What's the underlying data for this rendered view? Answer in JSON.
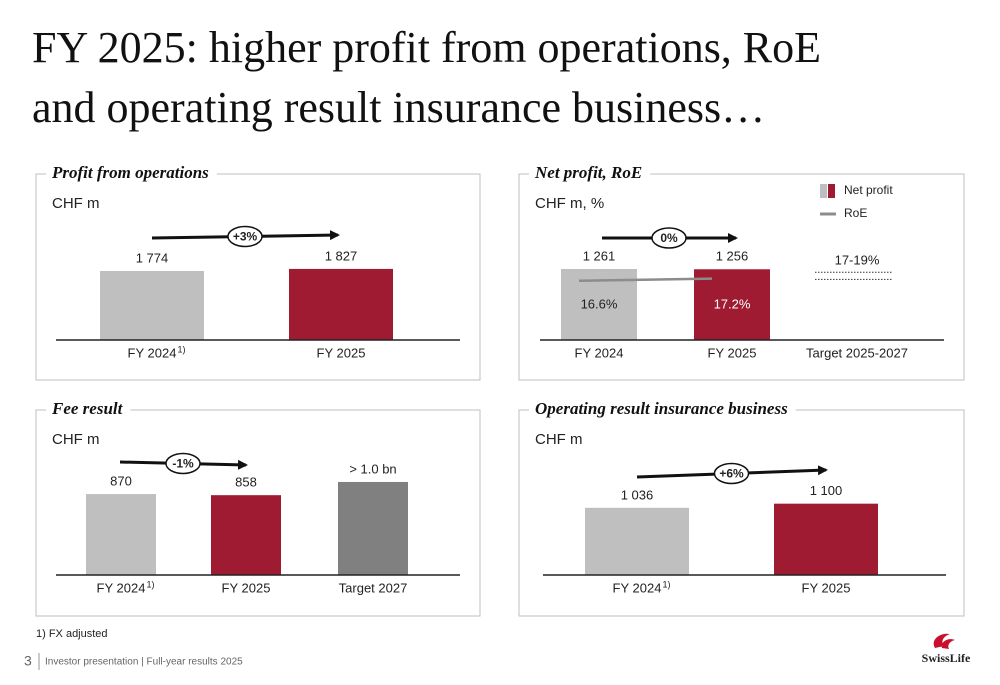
{
  "title": [
    "FY 2025: higher profit from operations, RoE",
    "and operating result insurance business…"
  ],
  "chart_data": [
    {
      "type": "bar",
      "title": "Profit from operations",
      "subtitle": "CHF m",
      "categories": [
        "FY 2024",
        "FY 2025"
      ],
      "category_notes": [
        "1)",
        null
      ],
      "values": [
        1774,
        1827
      ],
      "value_labels": [
        "1 774",
        "1 827"
      ],
      "colors": [
        "#bfbfbf",
        "#9e1b32"
      ],
      "ylim": [
        0,
        2750
      ],
      "change": "+3%"
    },
    {
      "type": "bar_line",
      "title": "Net profit, RoE",
      "subtitle": "CHF m, %",
      "categories": [
        "FY 2024",
        "FY 2025",
        "Target 2025-2027"
      ],
      "series": [
        {
          "name": "Net profit",
          "type": "bar",
          "colors": [
            "#bfbfbf",
            "#9e1b32",
            null
          ],
          "values": [
            1261,
            1256,
            null
          ],
          "value_labels": [
            "1 261",
            "1 256",
            null
          ]
        },
        {
          "name": "RoE",
          "type": "line",
          "axis": "y2",
          "color": "#8c8c8c",
          "values": [
            16.6,
            17.2,
            null
          ],
          "value_labels": [
            "16.6%",
            "17.2%",
            null
          ]
        }
      ],
      "ylim": [
        0,
        1900
      ],
      "y2lim": [
        0,
        30
      ],
      "change": "0%",
      "target_range": [
        17,
        19
      ],
      "target_label": "17-19%",
      "legend": "top-right"
    },
    {
      "type": "bar",
      "title": "Fee result",
      "subtitle": "CHF m",
      "categories": [
        "FY 2024",
        "FY 2025",
        "Target 2027"
      ],
      "category_notes": [
        "1)",
        null,
        null
      ],
      "values": [
        870,
        858,
        1000
      ],
      "value_labels": [
        "870",
        "858",
        "> 1.0 bn"
      ],
      "colors": [
        "#bfbfbf",
        "#9e1b32",
        "#808080"
      ],
      "ylim": [
        0,
        1150
      ],
      "change": "-1%"
    },
    {
      "type": "bar",
      "title": "Operating result insurance business",
      "subtitle": "CHF m",
      "categories": [
        "FY 2024",
        "FY 2025"
      ],
      "category_notes": [
        "1)",
        null
      ],
      "values": [
        1036,
        1100
      ],
      "value_labels": [
        "1 036",
        "1 100"
      ],
      "colors": [
        "#bfbfbf",
        "#9e1b32"
      ],
      "ylim": [
        0,
        1650
      ],
      "change": "+6%"
    }
  ],
  "footnote": "1) FX adjusted",
  "footer": {
    "page": "3",
    "text": "Investor presentation | Full-year results 2025"
  },
  "logo": "SwissLife"
}
